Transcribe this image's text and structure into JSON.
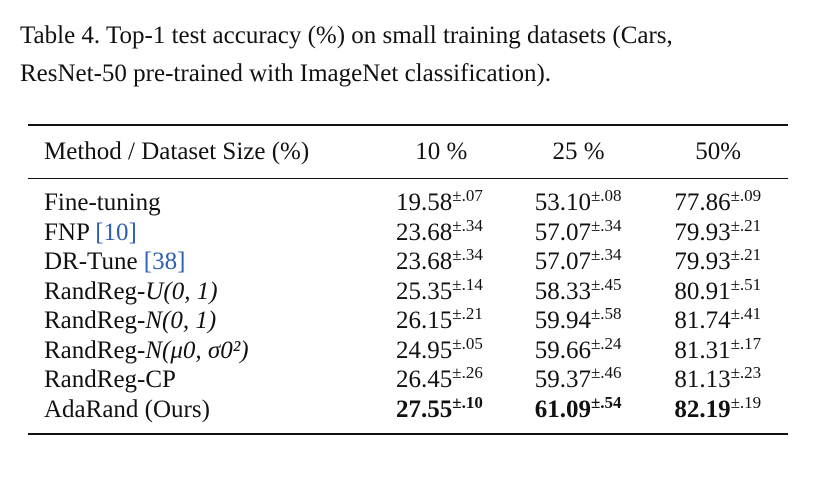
{
  "caption": {
    "line1": "Table 4. Top-1 test accuracy (%) on small training datasets (Cars,",
    "line2": "ResNet-50 pre-trained with ImageNet classification)."
  },
  "table": {
    "headers": [
      "Method / Dataset Size (%)",
      "10 %",
      "25 %",
      "50%"
    ],
    "rows": [
      {
        "method": "Fine-tuning",
        "cite": "",
        "suffix": "",
        "cells": [
          [
            "19.58",
            "±.07"
          ],
          [
            "53.10",
            "±.08"
          ],
          [
            "77.86",
            "±.09"
          ]
        ],
        "bold": [
          false,
          false,
          false
        ]
      },
      {
        "method": "FNP ",
        "cite": "[10]",
        "suffix": "",
        "cells": [
          [
            "23.68",
            "±.34"
          ],
          [
            "57.07",
            "±.34"
          ],
          [
            "79.93",
            "±.21"
          ]
        ],
        "bold": [
          false,
          false,
          false
        ]
      },
      {
        "method": "DR-Tune ",
        "cite": "[38]",
        "suffix": "",
        "cells": [
          [
            "23.68",
            "±.34"
          ],
          [
            "57.07",
            "±.34"
          ],
          [
            "79.93",
            "±.21"
          ]
        ],
        "bold": [
          false,
          false,
          false
        ]
      },
      {
        "method": "RandReg-",
        "cite": "",
        "suffix": "U(0, 1)",
        "cells": [
          [
            "25.35",
            "±.14"
          ],
          [
            "58.33",
            "±.45"
          ],
          [
            "80.91",
            "±.51"
          ]
        ],
        "bold": [
          false,
          false,
          false
        ]
      },
      {
        "method": "RandReg-",
        "cite": "",
        "suffix": "N(0, 1)",
        "cells": [
          [
            "26.15",
            "±.21"
          ],
          [
            "59.94",
            "±.58"
          ],
          [
            "81.74",
            "±.41"
          ]
        ],
        "bold": [
          false,
          false,
          false
        ]
      },
      {
        "method": "RandReg-",
        "cite": "",
        "suffix": "N(μ0, σ0²)",
        "cells": [
          [
            "24.95",
            "±.05"
          ],
          [
            "59.66",
            "±.24"
          ],
          [
            "81.31",
            "±.17"
          ]
        ],
        "bold": [
          false,
          false,
          false
        ]
      },
      {
        "method": "RandReg-CP",
        "cite": "",
        "suffix": "",
        "cells": [
          [
            "26.45",
            "±.26"
          ],
          [
            "59.37",
            "±.46"
          ],
          [
            "81.13",
            "±.23"
          ]
        ],
        "bold": [
          false,
          false,
          false
        ]
      },
      {
        "method": "AdaRand (Ours)",
        "cite": "",
        "suffix": "",
        "cells": [
          [
            "27.55",
            "±.10"
          ],
          [
            "61.09",
            "±.54"
          ],
          [
            "82.19",
            "±.19"
          ]
        ],
        "bold": [
          true,
          true,
          true
        ]
      }
    ]
  }
}
